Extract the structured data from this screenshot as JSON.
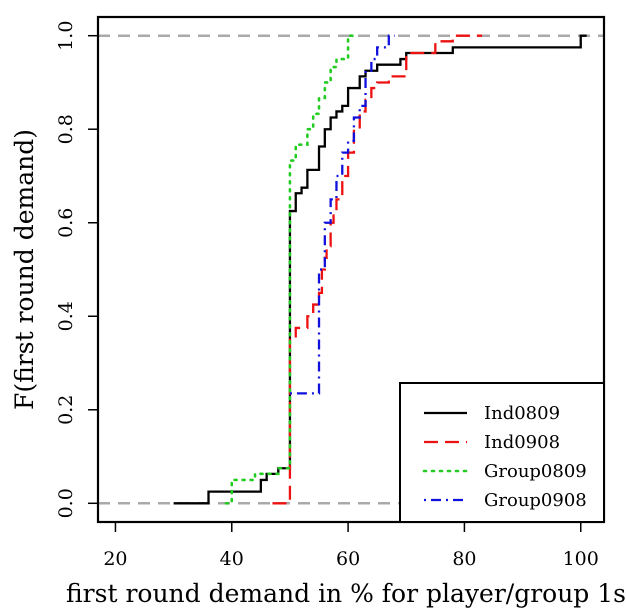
{
  "chart_data": {
    "type": "line",
    "step": true,
    "xlabel": "first round demand in % for player/group 1s",
    "ylabel": "F(first round demand)",
    "xlim": [
      17,
      104
    ],
    "ylim": [
      -0.04,
      1.04
    ],
    "xticks": [
      20,
      40,
      60,
      80,
      100
    ],
    "yticks": [
      0.0,
      0.2,
      0.4,
      0.6,
      0.8,
      1.0
    ],
    "ytick_labels": [
      "0.0",
      "0.2",
      "0.4",
      "0.6",
      "0.8",
      "1.0"
    ],
    "reference_lines": {
      "y": [
        0,
        1
      ],
      "color": "#aaaaaa",
      "style": "dashed"
    },
    "legend_position": "bottom-right",
    "series": [
      {
        "name": "Ind0809",
        "color": "#000000",
        "style": "solid",
        "steps": [
          [
            30,
            0.0
          ],
          [
            36,
            0.025
          ],
          [
            40,
            0.025
          ],
          [
            45,
            0.05
          ],
          [
            46,
            0.063
          ],
          [
            48,
            0.075
          ],
          [
            50,
            0.625
          ],
          [
            51,
            0.663
          ],
          [
            52,
            0.675
          ],
          [
            53,
            0.713
          ],
          [
            54,
            0.713
          ],
          [
            55,
            0.763
          ],
          [
            56,
            0.8
          ],
          [
            57,
            0.825
          ],
          [
            58,
            0.838
          ],
          [
            59,
            0.85
          ],
          [
            60,
            0.888
          ],
          [
            62,
            0.913
          ],
          [
            63,
            0.925
          ],
          [
            65,
            0.938
          ],
          [
            69,
            0.95
          ],
          [
            70,
            0.963
          ],
          [
            78,
            0.975
          ],
          [
            100,
            1.0
          ]
        ]
      },
      {
        "name": "Ind0908",
        "color": "#ee1111",
        "style": "dashed",
        "steps": [
          [
            47,
            0.0
          ],
          [
            50,
            0.35
          ],
          [
            51,
            0.375
          ],
          [
            53,
            0.4
          ],
          [
            54,
            0.425
          ],
          [
            55,
            0.45
          ],
          [
            55.5,
            0.5
          ],
          [
            56,
            0.525
          ],
          [
            56.3,
            0.55
          ],
          [
            57,
            0.6
          ],
          [
            57.5,
            0.625
          ],
          [
            58,
            0.65
          ],
          [
            59,
            0.7
          ],
          [
            60,
            0.75
          ],
          [
            61,
            0.8
          ],
          [
            62,
            0.838
          ],
          [
            63,
            0.863
          ],
          [
            64,
            0.888
          ],
          [
            65,
            0.9
          ],
          [
            67,
            0.913
          ],
          [
            70,
            0.963
          ],
          [
            75,
            0.988
          ],
          [
            78,
            1.0
          ],
          [
            82,
            1.0
          ]
        ]
      },
      {
        "name": "Group0809",
        "color": "#22cc22",
        "style": "dotted",
        "steps": [
          [
            39,
            0.0
          ],
          [
            40,
            0.05
          ],
          [
            44,
            0.063
          ],
          [
            48,
            0.075
          ],
          [
            50,
            0.733
          ],
          [
            51,
            0.767
          ],
          [
            53,
            0.8
          ],
          [
            54,
            0.833
          ],
          [
            55,
            0.867
          ],
          [
            56,
            0.9
          ],
          [
            57,
            0.933
          ],
          [
            58,
            0.95
          ],
          [
            60,
            1.0
          ]
        ]
      },
      {
        "name": "Group0908",
        "color": "#1111dd",
        "style": "dashdot",
        "steps": [
          [
            50,
            0.235
          ],
          [
            55,
            0.5
          ],
          [
            56,
            0.6
          ],
          [
            57,
            0.65
          ],
          [
            58,
            0.7
          ],
          [
            59,
            0.75
          ],
          [
            60,
            0.775
          ],
          [
            61,
            0.825
          ],
          [
            62,
            0.85
          ],
          [
            63,
            0.925
          ],
          [
            64,
            0.95
          ],
          [
            65,
            0.975
          ],
          [
            67,
            1.0
          ]
        ]
      }
    ]
  }
}
